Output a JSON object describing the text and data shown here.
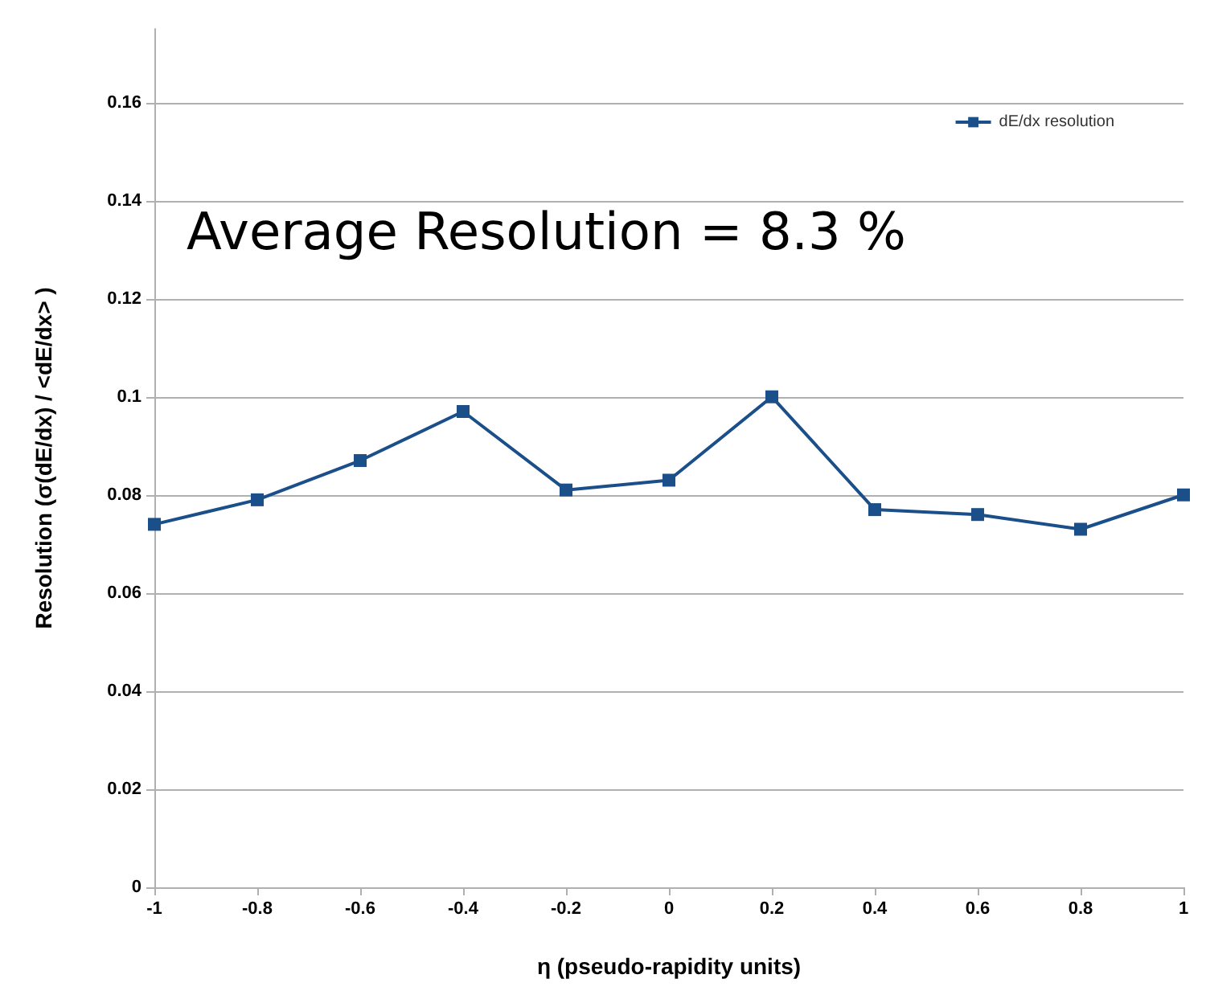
{
  "chart_data": {
    "type": "line",
    "xlabel": "η (pseudo-rapidity units)",
    "ylabel": "Resolution (σ(dE/dx) / <dE/dx> )",
    "x": [
      -1,
      -0.8,
      -0.6,
      -0.4,
      -0.2,
      0,
      0.2,
      0.4,
      0.6,
      0.8,
      1
    ],
    "series": [
      {
        "name": "dE/dx resolution",
        "color": "#1a4f8a",
        "values": [
          0.074,
          0.079,
          0.087,
          0.097,
          0.081,
          0.083,
          0.1,
          0.077,
          0.076,
          0.073,
          0.08
        ]
      }
    ],
    "xlim": [
      -1,
      1
    ],
    "xticks": [
      -1,
      -0.8,
      -0.6,
      -0.4,
      -0.2,
      0,
      0.2,
      0.4,
      0.6,
      0.8,
      1
    ],
    "ylim": [
      0,
      0.175
    ],
    "yticks": [
      0,
      0.02,
      0.04,
      0.06,
      0.08,
      0.1,
      0.12,
      0.14,
      0.16
    ],
    "annotations": [
      "Average Resolution = 8.3 %"
    ],
    "grid": "y",
    "legend": "top right",
    "marker": "square",
    "line_style": "solid"
  }
}
